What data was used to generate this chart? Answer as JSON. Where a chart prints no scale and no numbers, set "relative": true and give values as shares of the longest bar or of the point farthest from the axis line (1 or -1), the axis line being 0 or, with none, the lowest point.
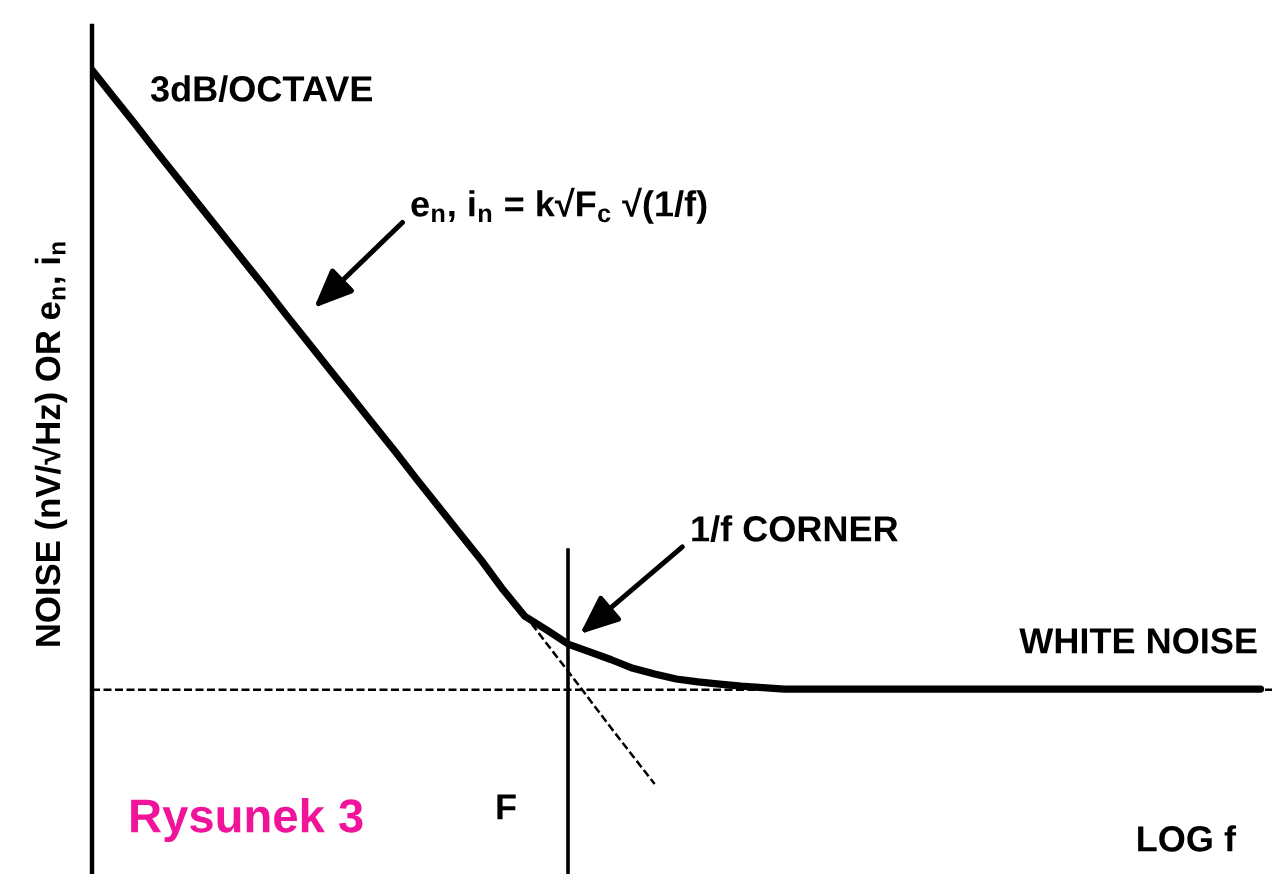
{
  "chart_data": {
    "type": "line",
    "relative": true,
    "xlabel": "LOG f",
    "ylabel": "NOISE (nV/√Hz) OR e$_{n}$, i$_{n}$",
    "categories": [
      null,
      null,
      null,
      null,
      null,
      null,
      null,
      null,
      null,
      null,
      null,
      null,
      null,
      null,
      null,
      null,
      null,
      null,
      null,
      null,
      null,
      null,
      null,
      null,
      null,
      null,
      null,
      null,
      null,
      null,
      null,
      null,
      null,
      null,
      null,
      null,
      null,
      null,
      null,
      null,
      null,
      null,
      null,
      null,
      null,
      null,
      null,
      null,
      null,
      null,
      null,
      null,
      null,
      null,
      null
    ],
    "series": [
      {
        "color": "#000000",
        "values": [
          1.0,
          0.962,
          0.924,
          0.885,
          0.847,
          0.809,
          0.771,
          0.733,
          0.695,
          0.656,
          0.618,
          0.58,
          0.542,
          0.504,
          0.466,
          0.427,
          0.389,
          0.351,
          0.313,
          0.272,
          0.235,
          0.216,
          0.196,
          0.185,
          0.174,
          0.162,
          0.154,
          0.147,
          0.143,
          0.14,
          0.137,
          0.135,
          0.133,
          0.133,
          0.133,
          0.133,
          0.133,
          0.133,
          0.133,
          0.133,
          0.133,
          0.133,
          0.133,
          0.133,
          0.133,
          0.133,
          0.133,
          0.133,
          0.133,
          0.133,
          0.133,
          0.133,
          0.133,
          0.133,
          0.133
        ]
      },
      {
        "color": "#000000",
        "line_style": "dashed",
        "values": [
          null,
          null,
          null,
          null,
          null,
          null,
          null,
          null,
          null,
          null,
          null,
          null,
          null,
          null,
          null,
          null,
          null,
          null,
          null,
          null,
          0.237,
          0.197,
          0.158,
          0.118,
          0.078,
          0.039,
          0.0,
          null,
          null,
          null,
          null,
          null,
          null,
          null,
          null,
          null,
          null,
          null,
          null,
          null,
          null,
          null,
          null,
          null,
          null,
          null,
          null,
          null,
          null,
          null,
          null,
          null,
          null,
          null,
          null
        ]
      }
    ],
    "ref_lines": [
      {
        "axis": "y",
        "value": 0.132,
        "line_style": "dashed",
        "color": "#000000"
      }
    ],
    "annotations": [
      "3dB/OCTAVE",
      "e$_{n}$, i$_{n}$ = k√F$_{c}$ √(1/f)",
      "1/f CORNER",
      "WHITE NOISE",
      "F",
      "Rysunek 3"
    ]
  }
}
